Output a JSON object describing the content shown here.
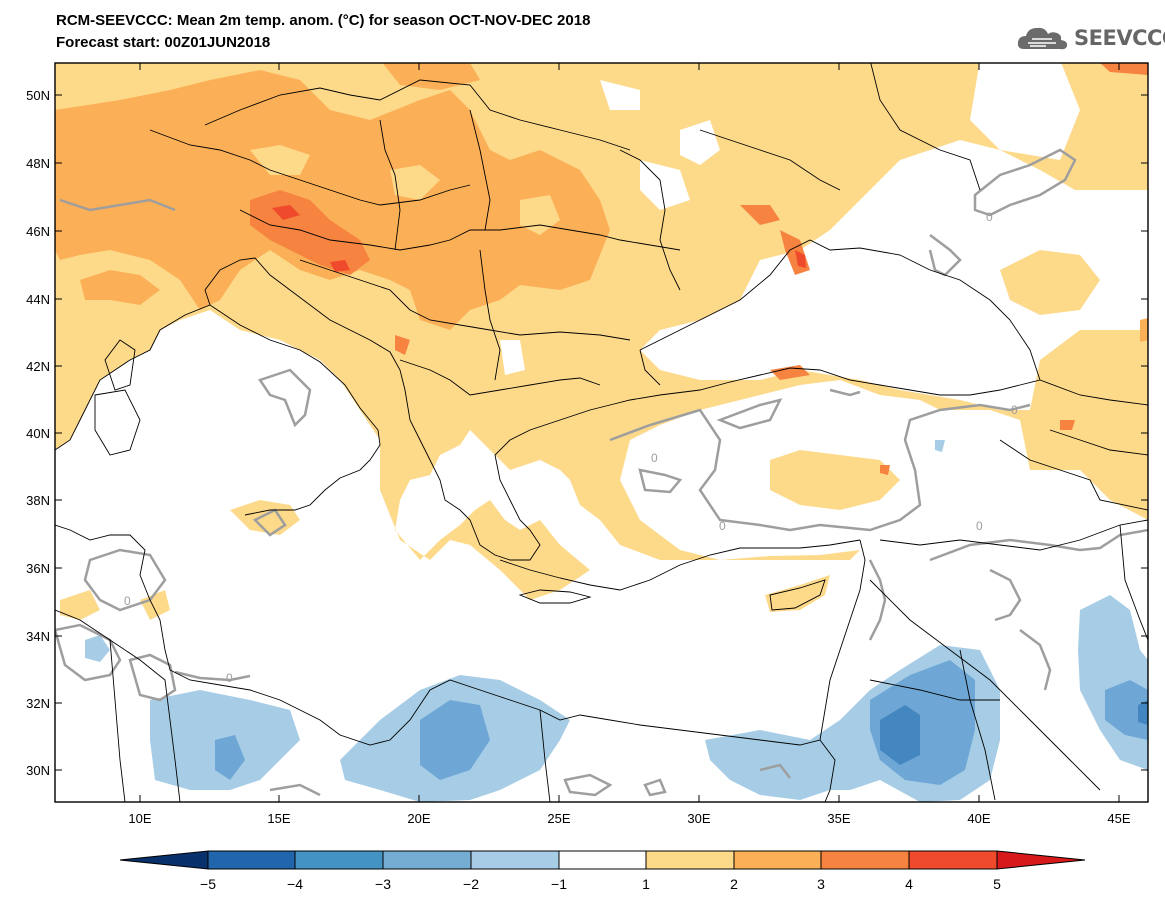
{
  "header": {
    "title_line1": "RCM-SEEVCCC: Mean 2m temp. anom. (°C) for season OCT-NOV-DEC 2018",
    "title_line2": "Forecast start: 00Z01JUN2018",
    "logo_text": "SEEVCCC"
  },
  "map": {
    "lat_labels": [
      "50N",
      "48N",
      "46N",
      "44N",
      "42N",
      "40N",
      "38N",
      "36N",
      "34N",
      "32N",
      "30N"
    ],
    "lon_labels": [
      "10E",
      "15E",
      "20E",
      "25E",
      "30E",
      "35E",
      "40E",
      "45E"
    ],
    "contour_labels": [
      "0",
      "0",
      "0",
      "0",
      "0",
      "0",
      "0"
    ],
    "colors": {
      "anom_1_2": "#fdd98a",
      "anom_2_3": "#fbb057",
      "anom_3_4": "#f6833f",
      "anom_4_5": "#ef4a2c",
      "anom_m1_m2": "#a6cde5",
      "anom_m2_m3": "#6ea7d6",
      "anom_m3_m4": "#4487c0",
      "zero_contour": "#9e9e9e",
      "borders": "#000000"
    }
  },
  "colorbar": {
    "labels": [
      "−5",
      "−4",
      "−3",
      "−2",
      "−1",
      "1",
      "2",
      "3",
      "4",
      "5"
    ],
    "colors": [
      "#08306b",
      "#2166ac",
      "#4393c3",
      "#74add1",
      "#a6cde5",
      "#ffffff",
      "#fdd98a",
      "#fbb057",
      "#f6833f",
      "#ef4a2c",
      "#d7191c"
    ]
  }
}
